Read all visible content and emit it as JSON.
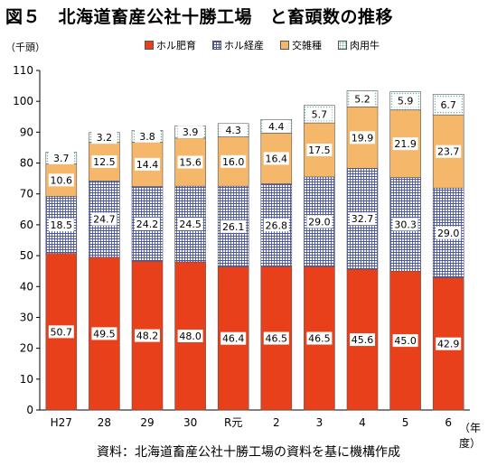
{
  "title": "図５　北海道畜産公社十勝工場　と畜頭数の推移",
  "y_unit": "（千頭）",
  "x_unit": "（年度）",
  "source": "資料：北海道畜産公社十勝工場の資料を基に機構作成",
  "colors": {
    "holstein_beef": "#e8401a",
    "holstein_cross": "#4a55a8",
    "crossbred": "#f5b86a",
    "beef_cattle": "#6ab7a8"
  },
  "chart_data": {
    "type": "bar",
    "stacked": true,
    "categories": [
      "H27",
      "28",
      "29",
      "30",
      "R元",
      "2",
      "3",
      "4",
      "5",
      "6"
    ],
    "ylim": [
      0,
      110
    ],
    "yticks": [
      0,
      10,
      20,
      30,
      40,
      50,
      60,
      70,
      80,
      90,
      100,
      110
    ],
    "legend_position": "top",
    "grid": false,
    "series": [
      {
        "name": "ホル肥育",
        "values": [
          50.7,
          49.5,
          48.2,
          48.0,
          46.4,
          46.5,
          46.5,
          45.6,
          45.0,
          42.9
        ]
      },
      {
        "name": "ホル経産",
        "values": [
          18.5,
          24.7,
          24.2,
          24.5,
          26.1,
          26.8,
          29.0,
          32.7,
          30.3,
          29.0
        ]
      },
      {
        "name": "交雑種",
        "values": [
          10.6,
          12.5,
          14.4,
          15.6,
          16.0,
          16.4,
          17.5,
          19.9,
          21.9,
          23.7
        ]
      },
      {
        "name": "肉用牛",
        "values": [
          3.7,
          3.2,
          3.8,
          3.9,
          4.3,
          4.4,
          5.7,
          5.2,
          5.9,
          6.7
        ]
      }
    ]
  }
}
